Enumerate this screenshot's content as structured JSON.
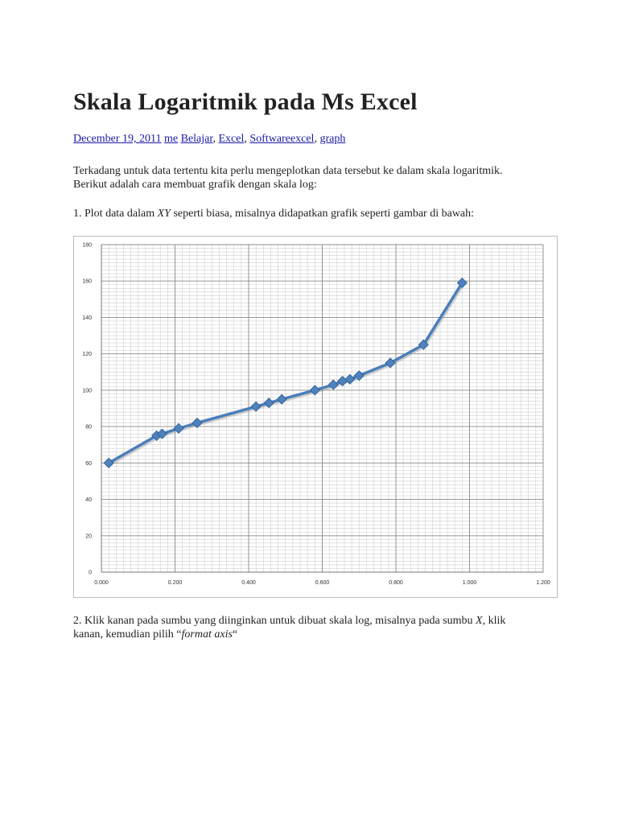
{
  "article": {
    "title": "Skala Logaritmik pada Ms Excel",
    "meta": {
      "date": "December 19, 2011",
      "author": "me",
      "categories": [
        "Belajar",
        "Excel",
        "Softwareexcel",
        "graph"
      ]
    },
    "intro_line1": "Terkadang untuk data tertentu kita perlu mengeplotkan data tersebut ke dalam skala logaritmik.",
    "intro_line2": "Berikut adalah cara membuat grafik dengan skala log:",
    "step1_prefix": "1. Plot data dalam ",
    "step1_italic": "XY",
    "step1_suffix": " seperti biasa, misalnya didapatkan grafik seperti gambar di bawah:",
    "step2_part1": "2. Klik kanan pada sumbu yang diinginkan untuk dibuat skala log, misalnya pada sumbu ",
    "step2_italic_axis": "X",
    "step2_part2": ", klik",
    "step2_part3": "kanan, kemudian pilih “",
    "step2_italic_option": "format axis",
    "step2_part4": "“"
  },
  "chart_data": {
    "type": "line",
    "title": "",
    "xlabel": "",
    "ylabel": "",
    "xlim": [
      0,
      1.2
    ],
    "ylim": [
      0,
      180
    ],
    "x_ticks": [
      "0.000",
      "0.200",
      "0.400",
      "0.600",
      "0.800",
      "1.000",
      "1.200"
    ],
    "y_ticks": [
      "0",
      "20",
      "40",
      "60",
      "80",
      "100",
      "120",
      "140",
      "160",
      "180"
    ],
    "grid": true,
    "legend": "none",
    "series_color": "#4a7ebb",
    "marker_color": "#4f81bd",
    "series": [
      {
        "x": [
          0.02,
          0.15,
          0.165,
          0.21,
          0.26,
          0.42,
          0.455,
          0.49,
          0.58,
          0.63,
          0.655,
          0.675,
          0.7,
          0.785,
          0.875,
          0.98
        ],
        "y": [
          60,
          75,
          76,
          79,
          82,
          91,
          93,
          95,
          100,
          103,
          105,
          106,
          108,
          115,
          125,
          159
        ]
      }
    ]
  }
}
